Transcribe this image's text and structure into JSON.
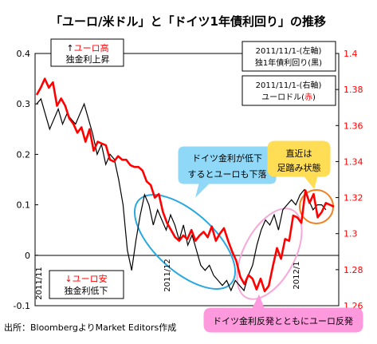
{
  "chart_data": {
    "type": "line",
    "title": "「ユーロ/米ドル」と「ドイツ1年債利回り」の推移",
    "x_tick_labels": [
      "2011/11",
      "2011/12",
      "2012/1"
    ],
    "y_left": {
      "min": -0.1,
      "max": 0.4,
      "ticks": [
        "0.4",
        "0.3",
        "0.2",
        "0.1",
        "0",
        "-0.1"
      ]
    },
    "y_right": {
      "min": 1.26,
      "max": 1.4,
      "ticks": [
        "1.4",
        "1.38",
        "1.36",
        "1.34",
        "1.32",
        "1.3",
        "1.28",
        "1.26"
      ]
    },
    "series": [
      {
        "color": "#000000",
        "axis": "left",
        "values": [
          0.3,
          0.31,
          0.28,
          0.25,
          0.27,
          0.29,
          0.26,
          0.28,
          0.27,
          0.26,
          0.28,
          0.3,
          0.27,
          0.24,
          0.2,
          0.22,
          0.18,
          0.2,
          0.19,
          0.15,
          0.1,
          0.01,
          -0.03,
          0.03,
          0.08,
          0.12,
          0.1,
          0.06,
          0.09,
          0.07,
          0.05,
          0.08,
          0.06,
          0.03,
          0.06,
          0.02,
          0.04,
          0.01,
          -0.02,
          -0.03,
          -0.02,
          -0.04,
          -0.05,
          -0.06,
          -0.05,
          -0.07,
          -0.05,
          -0.06,
          -0.07,
          -0.04,
          -0.02,
          0.02,
          0.05,
          0.07,
          0.06,
          0.08,
          0.05,
          0.09,
          0.1,
          0.11,
          0.1,
          0.12,
          0.13,
          0.11,
          0.09,
          0.1,
          0.1,
          0.09
        ]
      },
      {
        "color": "#ff0000",
        "axis": "right",
        "values": [
          1.377,
          1.381,
          1.386,
          1.381,
          1.384,
          1.371,
          1.375,
          1.371,
          1.364,
          1.361,
          1.356,
          1.359,
          1.351,
          1.358,
          1.346,
          1.351,
          1.35,
          1.349,
          1.341,
          1.34,
          1.343,
          1.341,
          1.341,
          1.338,
          1.337,
          1.337,
          1.335,
          1.329,
          1.327,
          1.32,
          1.322,
          1.312,
          1.306,
          1.302,
          1.298,
          1.296,
          1.299,
          1.297,
          1.302,
          1.296,
          1.299,
          1.301,
          1.298,
          1.304,
          1.296,
          1.3,
          1.303,
          1.296,
          1.29,
          1.285,
          1.276,
          1.272,
          1.277,
          1.275,
          1.269,
          1.275,
          1.268,
          1.271,
          1.282,
          1.292,
          1.286,
          1.297,
          1.296,
          1.31,
          1.309,
          1.306,
          1.324,
          1.317,
          1.322,
          1.309,
          1.312,
          1.317,
          1.316,
          1.315
        ]
      }
    ]
  },
  "annotations": {
    "top_left_arrow": "↑",
    "top_left_line1": "ユーロ高",
    "top_left_line2": "独金利上昇",
    "bottom_left_arrow": "↓",
    "bottom_left_line1": "ユーロ安",
    "bottom_left_line2": "独金利低下",
    "legend_left_line1": "2011/11/1-(左軸)",
    "legend_left_line2": "独1年債利回り(黒)",
    "legend_right_line1": "2011/11/1-(右軸)",
    "legend_right_line2_prefix": "ユーロドル(",
    "legend_right_line2_color": "赤",
    "legend_right_line2_suffix": ")",
    "callout_blue_line1": "ドイツ金利が低下",
    "callout_blue_line2": "するとユーロも下落",
    "callout_yellow_line1": "直近は",
    "callout_yellow_line2": "足踏み状態",
    "callout_pink": "ドイツ金利反発とともにユーロ反発",
    "source": "出所：BloombergよりMarket Editors作成"
  },
  "colors": {
    "red": "#ff0000",
    "blue_callout": "#8fd8f8",
    "blue_ellipse": "#2aa8e0",
    "yellow_callout": "#ffdd55",
    "orange_ellipse": "#f08020",
    "pink_callout": "#ff99dd",
    "pink_ellipse": "#f7a8d8"
  }
}
